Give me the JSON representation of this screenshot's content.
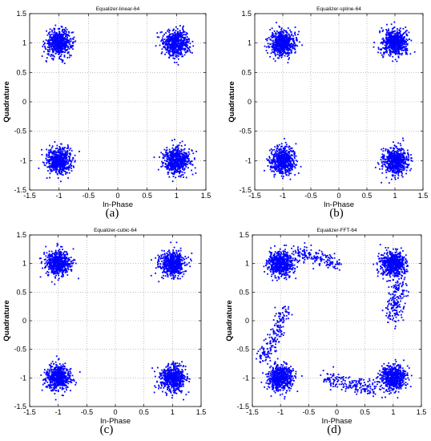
{
  "colors": {
    "points": "#0000ff",
    "grid": "#9a9a9a",
    "axes": "#000000",
    "background": "#ffffff"
  },
  "chart_data": [
    {
      "type": "scatter",
      "title": "Equalizer-linear-64",
      "xlabel": "In-Phase",
      "ylabel": "Quadrature",
      "xlim": [
        -1.5,
        1.5
      ],
      "ylim": [
        -1.5,
        1.5
      ],
      "xticks": [
        "-1.5",
        "-1",
        "-0.5",
        "0",
        "0.5",
        "1",
        "1.5"
      ],
      "yticks": [
        "-1.5",
        "-1",
        "-0.5",
        "0",
        "0.5",
        "1",
        "1.5"
      ],
      "grid": true,
      "caption": "(a)",
      "series": [
        {
          "cluster_centers": [
            [
              -1,
              1
            ],
            [
              1,
              1
            ],
            [
              -1,
              -1
            ],
            [
              1,
              -1
            ]
          ],
          "spread": 0.11,
          "points_per_cluster": 600,
          "arcs": []
        }
      ]
    },
    {
      "type": "scatter",
      "title": "Equalizer-spline-64",
      "xlabel": "In-Phase",
      "ylabel": "Quadrature",
      "xlim": [
        -1.5,
        1.5
      ],
      "ylim": [
        -1.5,
        1.5
      ],
      "xticks": [
        "-1.5",
        "-1",
        "-0.5",
        "0",
        "0.5",
        "1",
        "1.5"
      ],
      "yticks": [
        "-1.5",
        "-1",
        "-0.5",
        "0",
        "0.5",
        "1",
        "1.5"
      ],
      "grid": true,
      "caption": "(b)",
      "series": [
        {
          "cluster_centers": [
            [
              -1,
              1
            ],
            [
              1,
              1
            ],
            [
              -1,
              -1
            ],
            [
              1,
              -1
            ]
          ],
          "spread": 0.11,
          "points_per_cluster": 600,
          "arcs": []
        }
      ]
    },
    {
      "type": "scatter",
      "title": "Equalizer-cubic-64",
      "xlabel": "In-Phase",
      "ylabel": "Quadrature",
      "xlim": [
        -1.5,
        1.5
      ],
      "ylim": [
        -1.5,
        1.5
      ],
      "xticks": [
        "-1.5",
        "-1",
        "-0.5",
        "0",
        "0.5",
        "1",
        "1.5"
      ],
      "yticks": [
        "-1.5",
        "-1",
        "-0.5",
        "0",
        "0.5",
        "1",
        "1.5"
      ],
      "grid": true,
      "caption": "(c)",
      "series": [
        {
          "cluster_centers": [
            [
              -1,
              1
            ],
            [
              1,
              1
            ],
            [
              -1,
              -1
            ],
            [
              1,
              -1
            ]
          ],
          "spread": 0.11,
          "points_per_cluster": 600,
          "arcs": []
        }
      ]
    },
    {
      "type": "scatter",
      "title": "Equalizer-FFT-64",
      "xlabel": "In-Phase",
      "ylabel": "Quadrature",
      "xlim": [
        -1.5,
        1.5
      ],
      "ylim": [
        -1.5,
        1.5
      ],
      "xticks": [
        "-1.5",
        "-1",
        "-0.5",
        "0",
        "0.5",
        "1",
        "1.5"
      ],
      "yticks": [
        "-1.5",
        "-1",
        "-0.5",
        "0",
        "0.5",
        "1",
        "1.5"
      ],
      "grid": true,
      "caption": "(d)",
      "series": [
        {
          "cluster_centers": [
            [
              -1,
              1
            ],
            [
              1,
              1
            ],
            [
              -1,
              -1
            ],
            [
              1,
              -1
            ]
          ],
          "spread": 0.11,
          "points_per_cluster": 600,
          "arcs": [
            {
              "from": [
                -0.7,
                1.2
              ],
              "to": [
                0.0,
                1.0
              ],
              "points": 160,
              "spread": 0.07
            },
            {
              "from": [
                1.1,
                0.7
              ],
              "to": [
                1.0,
                0.0
              ],
              "points": 180,
              "spread": 0.08
            },
            {
              "from": [
                -0.9,
                0.2
              ],
              "to": [
                -1.3,
                -0.7
              ],
              "points": 180,
              "spread": 0.07
            },
            {
              "from": [
                -0.2,
                -1.0
              ],
              "to": [
                0.7,
                -1.2
              ],
              "points": 190,
              "spread": 0.07
            }
          ]
        }
      ]
    }
  ]
}
